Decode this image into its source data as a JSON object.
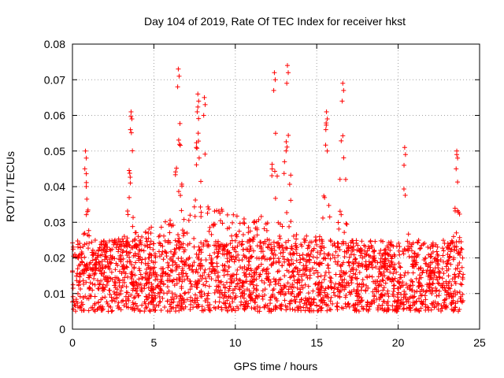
{
  "chart_data": {
    "type": "scatter",
    "title": "Day 104 of 2019, Rate Of TEC Index for receiver hkst",
    "xlabel": "GPS time / hours",
    "ylabel": "ROTI / TECUs",
    "xlim": [
      0,
      25
    ],
    "ylim": [
      0,
      0.08
    ],
    "x_ticks": [
      0,
      5,
      10,
      15,
      20,
      25
    ],
    "x_tick_labels": [
      "0",
      "5",
      "10",
      "15",
      "20",
      "25"
    ],
    "y_ticks": [
      0,
      0.01,
      0.02,
      0.03,
      0.04,
      0.05,
      0.06,
      0.07,
      0.08
    ],
    "y_tick_labels": [
      "0",
      "0.01",
      "0.02",
      "0.03",
      "0.04",
      "0.05",
      "0.06",
      "0.07",
      "0.08"
    ],
    "grid": true,
    "marker": "+",
    "color": "#ff0000",
    "series": [
      {
        "name": "ROTI hkst",
        "point_count": 2600,
        "baseline_range": [
          0.005,
          0.025
        ],
        "peaks": [
          {
            "x": 0.8,
            "y": 0.05
          },
          {
            "x": 3.6,
            "y": 0.061
          },
          {
            "x": 6.5,
            "y": 0.073
          },
          {
            "x": 7.7,
            "y": 0.066
          },
          {
            "x": 8.1,
            "y": 0.065
          },
          {
            "x": 12.4,
            "y": 0.072
          },
          {
            "x": 13.2,
            "y": 0.074
          },
          {
            "x": 16.6,
            "y": 0.069
          },
          {
            "x": 15.6,
            "y": 0.061
          },
          {
            "x": 20.4,
            "y": 0.051
          },
          {
            "x": 23.6,
            "y": 0.05
          }
        ]
      }
    ]
  }
}
